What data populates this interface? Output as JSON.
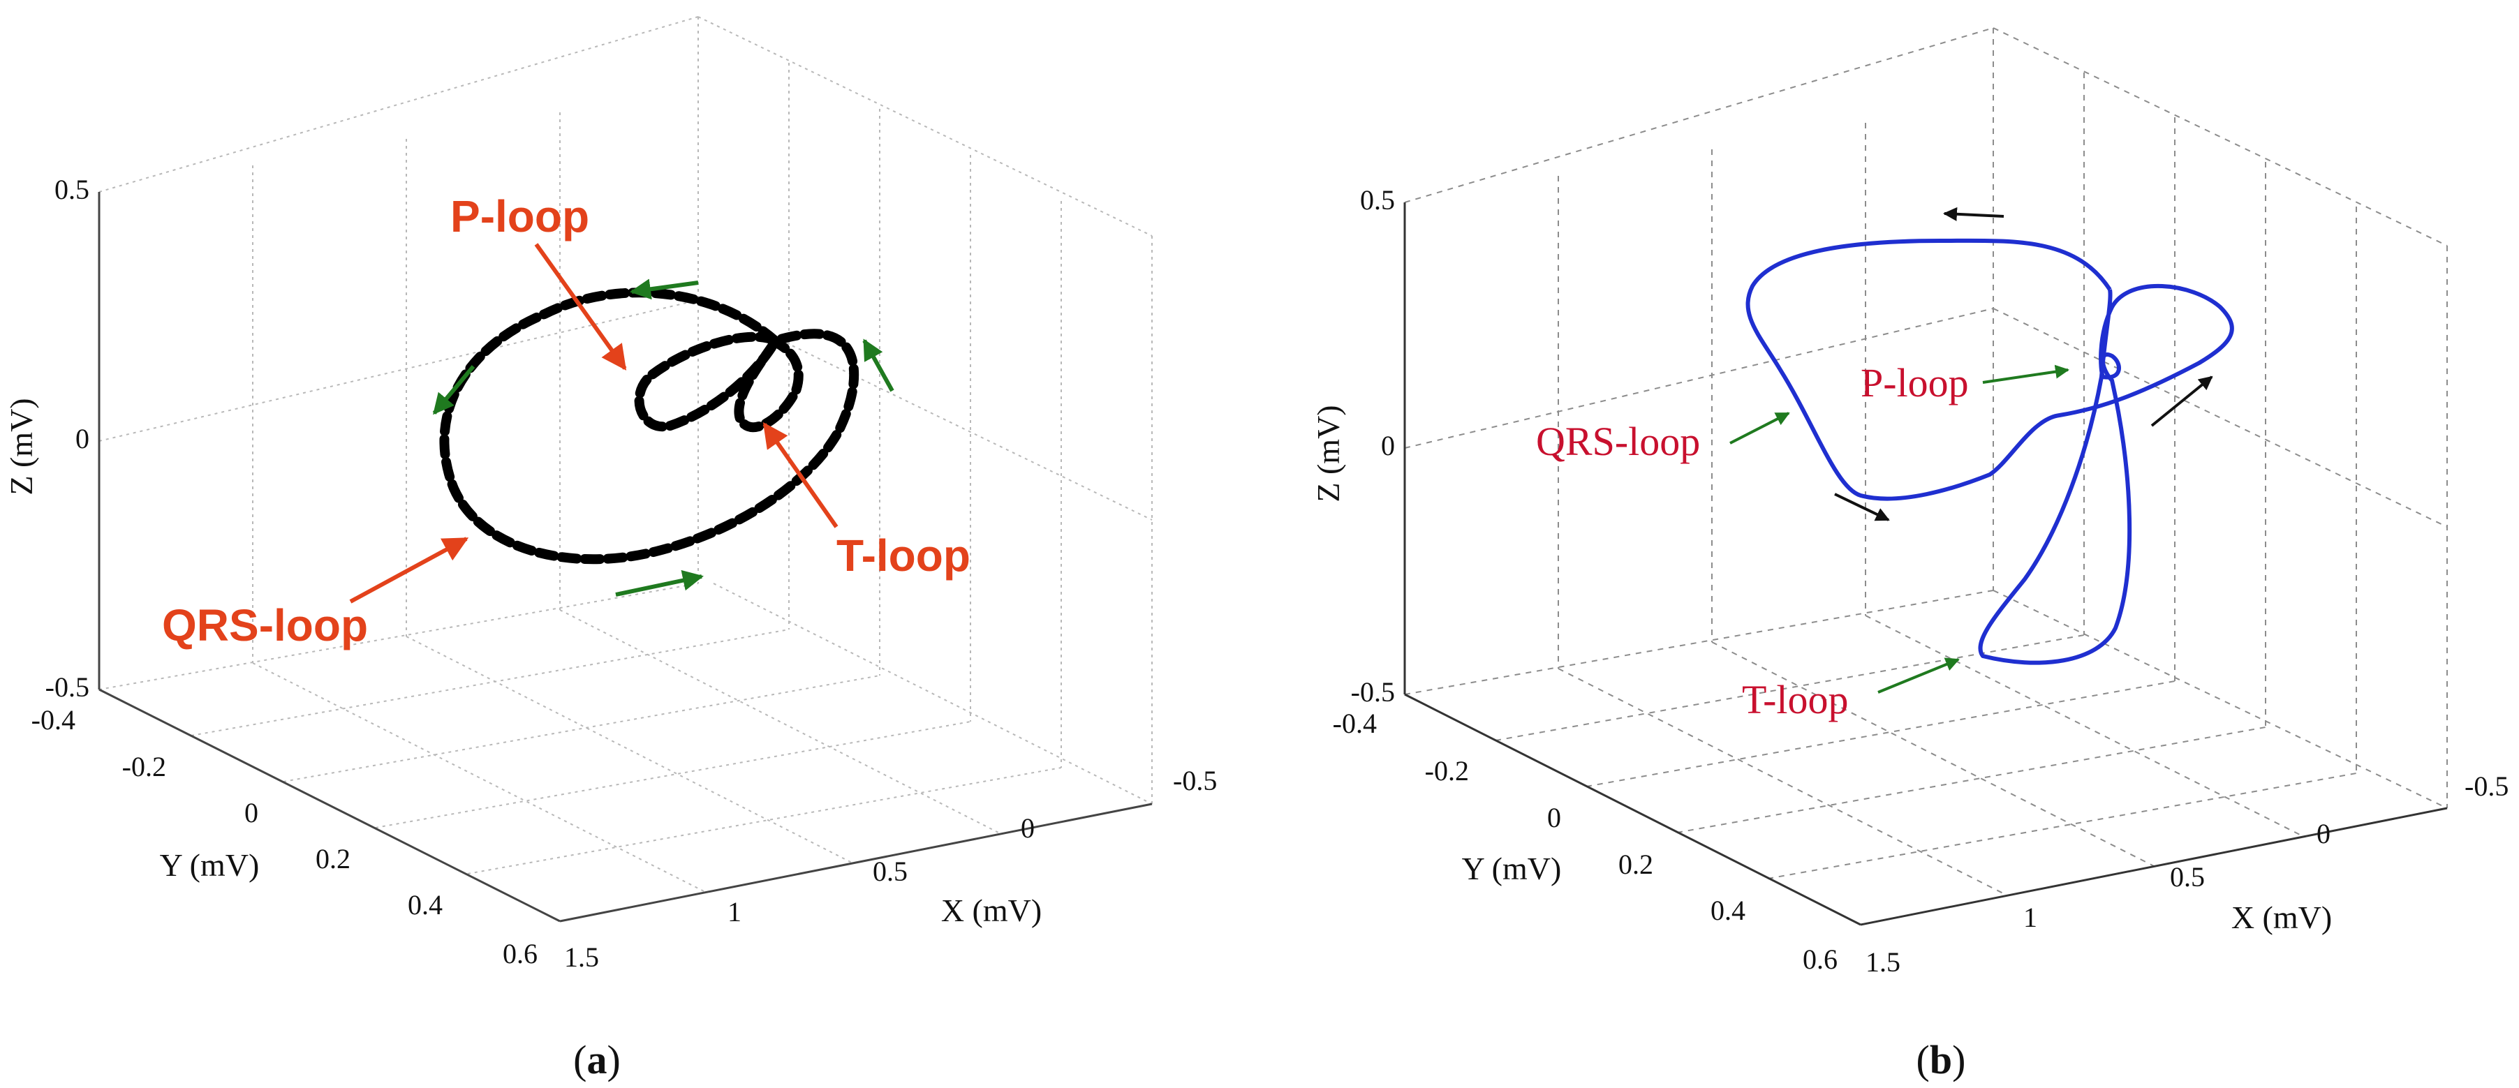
{
  "chart_data": [
    {
      "panel": "a",
      "type": "line3d",
      "line_style": "dashed",
      "line_color": "#000000",
      "direction_arrow_color": "#1f7a1f",
      "callout_color": "#e3421b",
      "xlabel": "X (mV)",
      "ylabel": "Y (mV)",
      "zlabel": "Z (mV)",
      "xlim": [
        -0.5,
        1.5
      ],
      "ylim": [
        -0.4,
        0.6
      ],
      "zlim": [
        -0.5,
        0.5
      ],
      "x_ticks": [
        "-0.5",
        "0",
        "0.5",
        "1",
        "1.5"
      ],
      "y_ticks": [
        "-0.4",
        "-0.2",
        "0",
        "0.2",
        "0.4",
        "0.6"
      ],
      "z_ticks": [
        "-0.5",
        "0",
        "0.5"
      ],
      "grid": true,
      "annotations": [
        "P-loop",
        "T-loop",
        "QRS-loop"
      ],
      "caption": "a"
    },
    {
      "panel": "b",
      "type": "line3d",
      "line_style": "solid",
      "line_color": "#1f2fd0",
      "direction_arrow_color": "#111111",
      "callout_arrow_color": "#1f7a1f",
      "callout_color": "#c8102e",
      "xlabel": "X (mV)",
      "ylabel": "Y (mV)",
      "zlabel": "Z (mV)",
      "xlim": [
        -0.5,
        1.5
      ],
      "ylim": [
        -0.4,
        0.6
      ],
      "zlim": [
        -0.5,
        0.5
      ],
      "x_ticks": [
        "-0.5",
        "0",
        "0.5",
        "1",
        "1.5"
      ],
      "y_ticks": [
        "-0.4",
        "-0.2",
        "0",
        "0.2",
        "0.4",
        "0.6"
      ],
      "z_ticks": [
        "-0.5",
        "0",
        "0.5"
      ],
      "grid": true,
      "annotations": [
        "P-loop",
        "QRS-loop",
        "T-loop"
      ],
      "caption": "b"
    }
  ]
}
